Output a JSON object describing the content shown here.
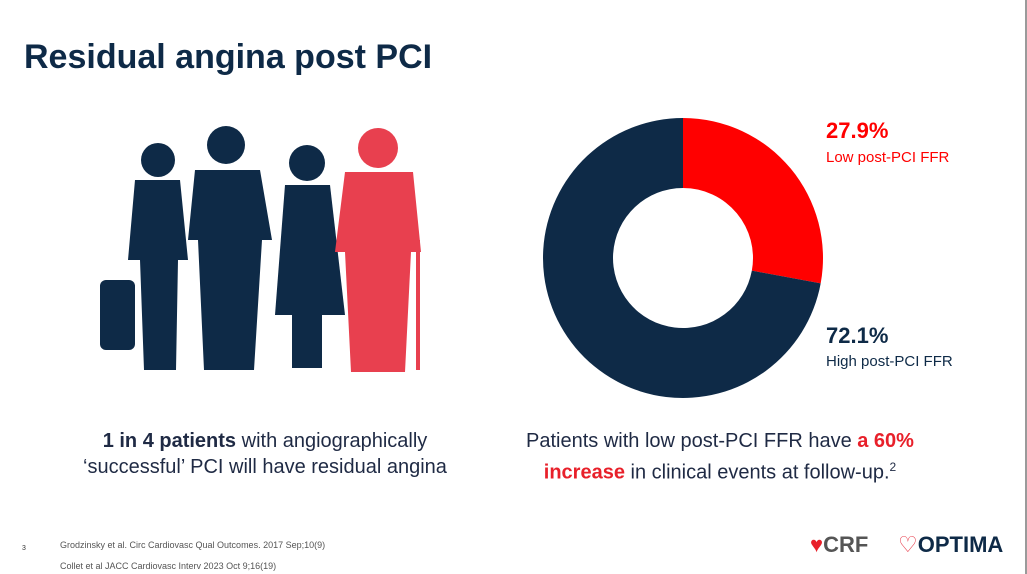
{
  "slide": {
    "title": "Residual angina post PCI",
    "left_caption": {
      "bold": "1 in 4 patients",
      "text": " with angiographically ‘successful’ PCI will have residual angina"
    },
    "right_caption": {
      "text": "Patients with low post-PCI FFR have ",
      "highlight": "a 60% increase",
      "after": " in clinical events at follow-up.",
      "superscript": "2"
    },
    "references": [
      "Grodzinsky et al. Circ Cardiovasc Qual Outcomes. 2017 Sep;10(9)",
      "Collet et al JACC Cardiovasc Interv 2023 Oct 9;16(19)"
    ],
    "page_number": "3",
    "logos": [
      "CRF",
      "OPTIMA"
    ]
  },
  "chart_data": {
    "type": "donut",
    "categories": [
      "Low post-PCI FFR",
      "High post-PCI FFR"
    ],
    "values": [
      27.9,
      72.1
    ],
    "value_labels": [
      "27.9%",
      "72.1%"
    ],
    "colors": [
      "#ff0000",
      "#0e2a47"
    ]
  }
}
